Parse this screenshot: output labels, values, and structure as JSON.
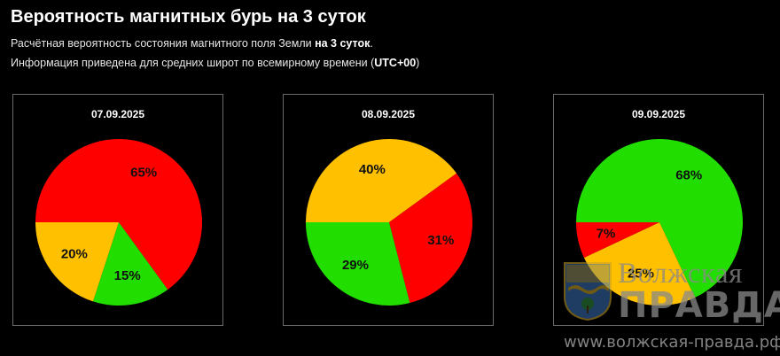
{
  "header": {
    "title": "Вероятность магнитных бурь на 3 суток",
    "line1_prefix": "Расчётная вероятность состояния магнитного поля Земли ",
    "line1_bold": "на 3 суток",
    "line1_suffix": ".",
    "line2_prefix": "Информация приведена для средних широт по всемирному времени (",
    "line2_bold": "UTC+00",
    "line2_suffix": ")"
  },
  "colors": {
    "green": "#22dd00",
    "yellow": "#ffc000",
    "red": "#ff0000",
    "background": "#000000",
    "panel_border": "#6a6a6a"
  },
  "chart_data": [
    {
      "type": "pie",
      "title": "07.09.2025",
      "slices": [
        {
          "value": 65,
          "label": "65%",
          "color": "#ff0000"
        },
        {
          "value": 15,
          "label": "15%",
          "color": "#22dd00"
        },
        {
          "value": 20,
          "label": "20%",
          "color": "#ffc000"
        }
      ]
    },
    {
      "type": "pie",
      "title": "08.09.2025",
      "slices": [
        {
          "value": 40,
          "label": "40%",
          "color": "#ffc000"
        },
        {
          "value": 31,
          "label": "31%",
          "color": "#ff0000"
        },
        {
          "value": 29,
          "label": "29%",
          "color": "#22dd00"
        }
      ]
    },
    {
      "type": "pie",
      "title": "09.09.2025",
      "slices": [
        {
          "value": 68,
          "label": "68%",
          "color": "#22dd00"
        },
        {
          "value": 25,
          "label": "25%",
          "color": "#ffc000"
        },
        {
          "value": 7,
          "label": "7%",
          "color": "#ff0000"
        }
      ]
    }
  ],
  "watermark": {
    "name_line1": "Волжская",
    "name_line2": "ПРАВДА",
    "url": "www.волжская-правда.рф",
    "logo_icon": "city-coat-of-arms-icon"
  }
}
